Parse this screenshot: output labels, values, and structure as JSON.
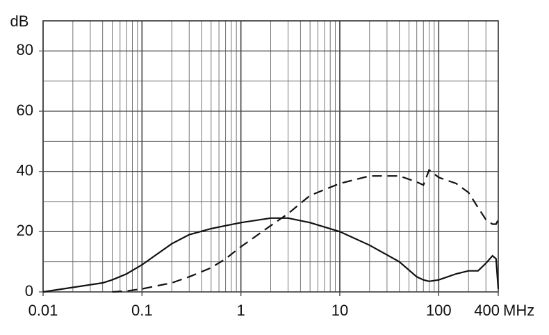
{
  "chart_data": {
    "type": "line",
    "y_label": "dB",
    "x_label": "MHz",
    "log_x": true,
    "grid": true,
    "minor_grid": true,
    "y_grid_step": 10,
    "xlim": [
      0.01,
      400
    ],
    "xticks": [
      0.01,
      0.1,
      1,
      10,
      100,
      400
    ],
    "ylim": [
      0,
      90
    ],
    "yticks": [
      0,
      20,
      40,
      60,
      80
    ],
    "x": [
      0.01,
      0.02,
      0.04,
      0.05,
      0.07,
      0.1,
      0.2,
      0.3,
      0.5,
      0.7,
      1,
      2,
      3,
      5,
      10,
      20,
      40,
      60,
      70,
      80,
      100,
      150,
      200,
      250,
      300,
      350,
      380,
      400
    ],
    "series": [
      {
        "color": "#111111",
        "dash": false,
        "values": [
          0,
          1.5,
          3,
          4,
          6,
          9,
          16,
          19,
          21,
          22,
          23,
          24.5,
          24.5,
          23,
          20,
          15.5,
          10,
          5,
          4,
          3.5,
          4,
          6,
          7,
          7,
          9.5,
          12,
          11,
          1
        ]
      },
      {
        "color": "#111111",
        "dash": true,
        "values": [
          null,
          null,
          null,
          0,
          0.3,
          1,
          3,
          5,
          8,
          11,
          15,
          22,
          26,
          32,
          36,
          38.5,
          38.5,
          36.5,
          35.5,
          40.5,
          38,
          36,
          33,
          28,
          24,
          22.5,
          22.5,
          24
        ]
      }
    ]
  }
}
